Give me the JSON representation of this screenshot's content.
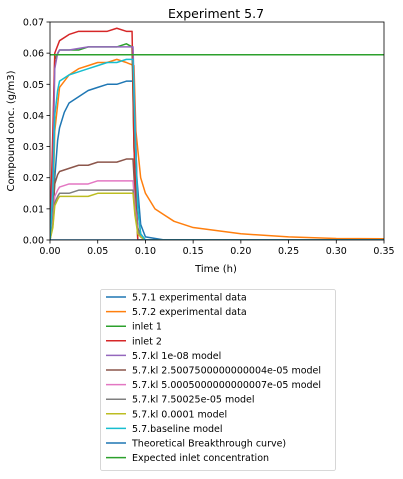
{
  "chart_data": {
    "type": "line",
    "title": "Experiment 5.7",
    "xlabel": "Time (h)",
    "ylabel": "Compound conc. (g/m3)",
    "xlim": [
      0.0,
      0.35
    ],
    "ylim": [
      0.0,
      0.07
    ],
    "xticks": [
      "0.00",
      "0.05",
      "0.10",
      "0.15",
      "0.20",
      "0.25",
      "0.30",
      "0.35"
    ],
    "yticks": [
      "0.00",
      "0.01",
      "0.02",
      "0.03",
      "0.04",
      "0.05",
      "0.06",
      "0.07"
    ],
    "grid": false,
    "legend_position": "below",
    "series": [
      {
        "name": "5.7.1 experimental data",
        "color": "#1f77b4",
        "x": [
          0,
          0.003,
          0.005,
          0.008,
          0.01,
          0.015,
          0.02,
          0.03,
          0.04,
          0.05,
          0.06,
          0.07,
          0.08,
          0.085,
          0.088,
          0.091,
          0.095,
          0.1,
          0.12,
          0.15,
          0.2,
          0.25,
          0.3,
          0.35
        ],
        "y": [
          0,
          0.005,
          0.02,
          0.032,
          0.036,
          0.041,
          0.044,
          0.046,
          0.048,
          0.049,
          0.05,
          0.05,
          0.051,
          0.051,
          0.051,
          0.02,
          0.005,
          0.001,
          0,
          0,
          0,
          0,
          0,
          0
        ]
      },
      {
        "name": "5.7.2 experimental data",
        "color": "#ff7f0e",
        "x": [
          0,
          0.003,
          0.005,
          0.01,
          0.02,
          0.03,
          0.04,
          0.05,
          0.06,
          0.07,
          0.08,
          0.088,
          0.09,
          0.095,
          0.1,
          0.11,
          0.12,
          0.13,
          0.15,
          0.2,
          0.25,
          0.3,
          0.35
        ],
        "y": [
          0,
          0.01,
          0.035,
          0.049,
          0.053,
          0.055,
          0.056,
          0.057,
          0.057,
          0.058,
          0.057,
          0.056,
          0.035,
          0.02,
          0.015,
          0.01,
          0.008,
          0.006,
          0.004,
          0.002,
          0.001,
          0.0005,
          0.0004
        ]
      },
      {
        "name": "inlet 1",
        "color": "#2ca02c",
        "x": [
          0,
          0.003,
          0.005,
          0.01,
          0.02,
          0.03,
          0.04,
          0.05,
          0.06,
          0.07,
          0.08,
          0.086,
          0.088,
          0.092,
          0.35
        ],
        "y": [
          0,
          0.03,
          0.058,
          0.061,
          0.061,
          0.061,
          0.062,
          0.062,
          0.062,
          0.062,
          0.063,
          0.062,
          0.03,
          0,
          0
        ]
      },
      {
        "name": "inlet 2",
        "color": "#d62728",
        "x": [
          0,
          0.003,
          0.005,
          0.01,
          0.02,
          0.03,
          0.04,
          0.05,
          0.06,
          0.07,
          0.08,
          0.086,
          0.088,
          0.092,
          0.35
        ],
        "y": [
          0,
          0.035,
          0.06,
          0.064,
          0.066,
          0.067,
          0.067,
          0.067,
          0.067,
          0.068,
          0.067,
          0.067,
          0.03,
          0,
          0
        ]
      },
      {
        "name": "5.7.kl 1e-08 model",
        "color": "#9467bd",
        "x": [
          0,
          0.003,
          0.005,
          0.008,
          0.01,
          0.02,
          0.04,
          0.06,
          0.08,
          0.087,
          0.089,
          0.092,
          0.095,
          0.1,
          0.35
        ],
        "y": [
          0,
          0.02,
          0.055,
          0.06,
          0.061,
          0.061,
          0.062,
          0.062,
          0.062,
          0.062,
          0.04,
          0.01,
          0.002,
          0,
          0
        ]
      },
      {
        "name": "5.7.kl 2.5007500000000004e-05 model",
        "color": "#8c564b",
        "x": [
          0,
          0.003,
          0.005,
          0.008,
          0.01,
          0.02,
          0.03,
          0.04,
          0.05,
          0.06,
          0.07,
          0.08,
          0.087,
          0.089,
          0.092,
          0.095,
          0.1,
          0.35
        ],
        "y": [
          0,
          0.008,
          0.018,
          0.021,
          0.022,
          0.023,
          0.024,
          0.024,
          0.025,
          0.025,
          0.025,
          0.026,
          0.026,
          0.015,
          0.004,
          0.001,
          0,
          0
        ]
      },
      {
        "name": "5.7.kl 5.0005000000000007e-05 model",
        "color": "#e377c2",
        "x": [
          0,
          0.003,
          0.005,
          0.008,
          0.01,
          0.02,
          0.03,
          0.04,
          0.05,
          0.06,
          0.07,
          0.08,
          0.087,
          0.089,
          0.092,
          0.095,
          0.1,
          0.35
        ],
        "y": [
          0,
          0.006,
          0.014,
          0.016,
          0.017,
          0.018,
          0.018,
          0.018,
          0.019,
          0.019,
          0.019,
          0.019,
          0.019,
          0.011,
          0.003,
          0.001,
          0,
          0
        ]
      },
      {
        "name": "5.7.kl 7.50025e-05 model",
        "color": "#7f7f7f",
        "x": [
          0,
          0.003,
          0.005,
          0.008,
          0.01,
          0.02,
          0.03,
          0.04,
          0.05,
          0.06,
          0.07,
          0.08,
          0.087,
          0.089,
          0.092,
          0.095,
          0.1,
          0.35
        ],
        "y": [
          0,
          0.005,
          0.012,
          0.014,
          0.015,
          0.015,
          0.016,
          0.016,
          0.016,
          0.016,
          0.016,
          0.016,
          0.016,
          0.009,
          0.003,
          0.001,
          0,
          0
        ]
      },
      {
        "name": "5.7.kl 0.0001 model",
        "color": "#bcbd22",
        "x": [
          0,
          0.003,
          0.005,
          0.008,
          0.01,
          0.02,
          0.03,
          0.04,
          0.05,
          0.06,
          0.07,
          0.08,
          0.087,
          0.089,
          0.092,
          0.095,
          0.1,
          0.35
        ],
        "y": [
          0,
          0.004,
          0.011,
          0.013,
          0.014,
          0.014,
          0.014,
          0.014,
          0.015,
          0.015,
          0.015,
          0.015,
          0.015,
          0.008,
          0.002,
          0.001,
          0,
          0
        ]
      },
      {
        "name": "5.7.baseline model",
        "color": "#17becf",
        "x": [
          0,
          0.003,
          0.005,
          0.008,
          0.01,
          0.02,
          0.03,
          0.04,
          0.05,
          0.06,
          0.07,
          0.08,
          0.087,
          0.089,
          0.092,
          0.095,
          0.1,
          0.35
        ],
        "y": [
          0,
          0.015,
          0.04,
          0.048,
          0.051,
          0.053,
          0.054,
          0.055,
          0.056,
          0.057,
          0.057,
          0.058,
          0.058,
          0.035,
          0.01,
          0.002,
          0,
          0
        ]
      },
      {
        "name": "Theoretical Breakthrough curve)",
        "color": "#1f77b4",
        "x": [
          0,
          0.086,
          0.087,
          0.35
        ],
        "y": [
          0,
          0,
          0,
          0
        ]
      },
      {
        "name": "Expected inlet concentration",
        "color": "#2ca02c",
        "x": [
          0,
          0.35
        ],
        "y": [
          0.0595,
          0.0595
        ]
      }
    ]
  }
}
